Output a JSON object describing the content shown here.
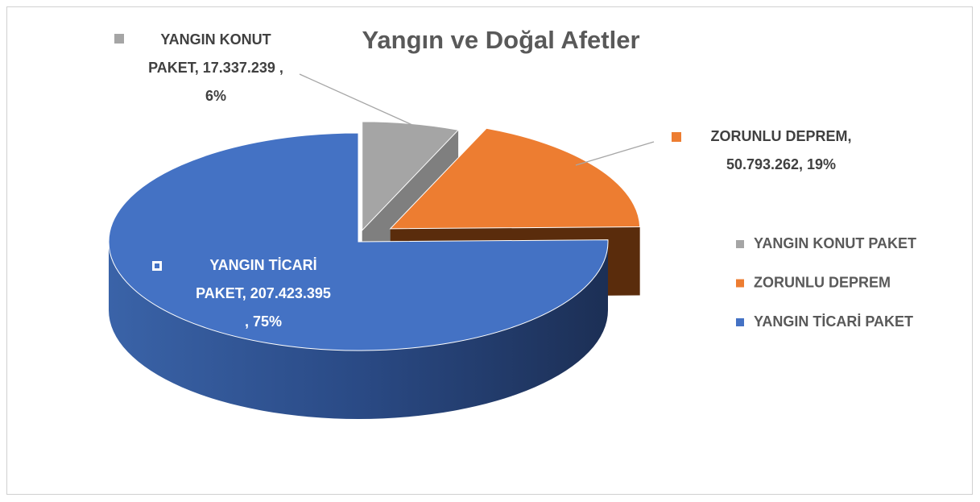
{
  "chart_data": {
    "type": "pie",
    "title": "Yangın ve Doğal Afetler",
    "categories": [
      "YANGIN KONUT PAKET",
      "ZORUNLU DEPREM",
      "YANGIN TİCARİ PAKET"
    ],
    "values": [
      17337239,
      50793262,
      207423395
    ],
    "value_labels": [
      "YANGIN KONUT PAKET, 17.337.239 , 6%",
      "ZORUNLU DEPREM, 50.793.262, 19%",
      "YANGIN TİCARİ PAKET, 207.423.395 , 75%"
    ],
    "colors": [
      "#a5a5a5",
      "#ed7d31",
      "#4472c4"
    ],
    "legend": "right"
  }
}
